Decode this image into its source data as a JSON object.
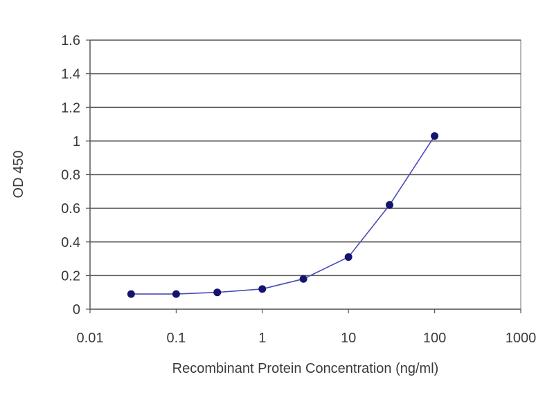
{
  "chart_data": {
    "type": "line",
    "title": "",
    "xlabel": "Recombinant Protein Concentration (ng/ml)",
    "ylabel": "OD 450",
    "xscale": "log",
    "xlim": [
      0.01,
      1000
    ],
    "ylim": [
      0,
      1.6
    ],
    "xticks": [
      "0.01",
      "0.1",
      "1",
      "10",
      "100",
      "1000"
    ],
    "xtick_values": [
      0.01,
      0.1,
      1,
      10,
      100,
      1000
    ],
    "yticks": [
      "0",
      "0.2",
      "0.4",
      "0.6",
      "0.8",
      "1",
      "1.2",
      "1.4",
      "1.6"
    ],
    "ytick_values": [
      0,
      0.2,
      0.4,
      0.6,
      0.8,
      1.0,
      1.2,
      1.4,
      1.6
    ],
    "grid": "horizontal",
    "legend": "none",
    "series": [
      {
        "x": [
          0.03,
          0.1,
          0.3,
          1,
          3,
          10,
          30,
          100
        ],
        "y": [
          0.09,
          0.09,
          0.1,
          0.12,
          0.18,
          0.31,
          0.62,
          1.03
        ],
        "line_color": "#4a4ab8",
        "marker_color": "#14146e"
      }
    ]
  }
}
